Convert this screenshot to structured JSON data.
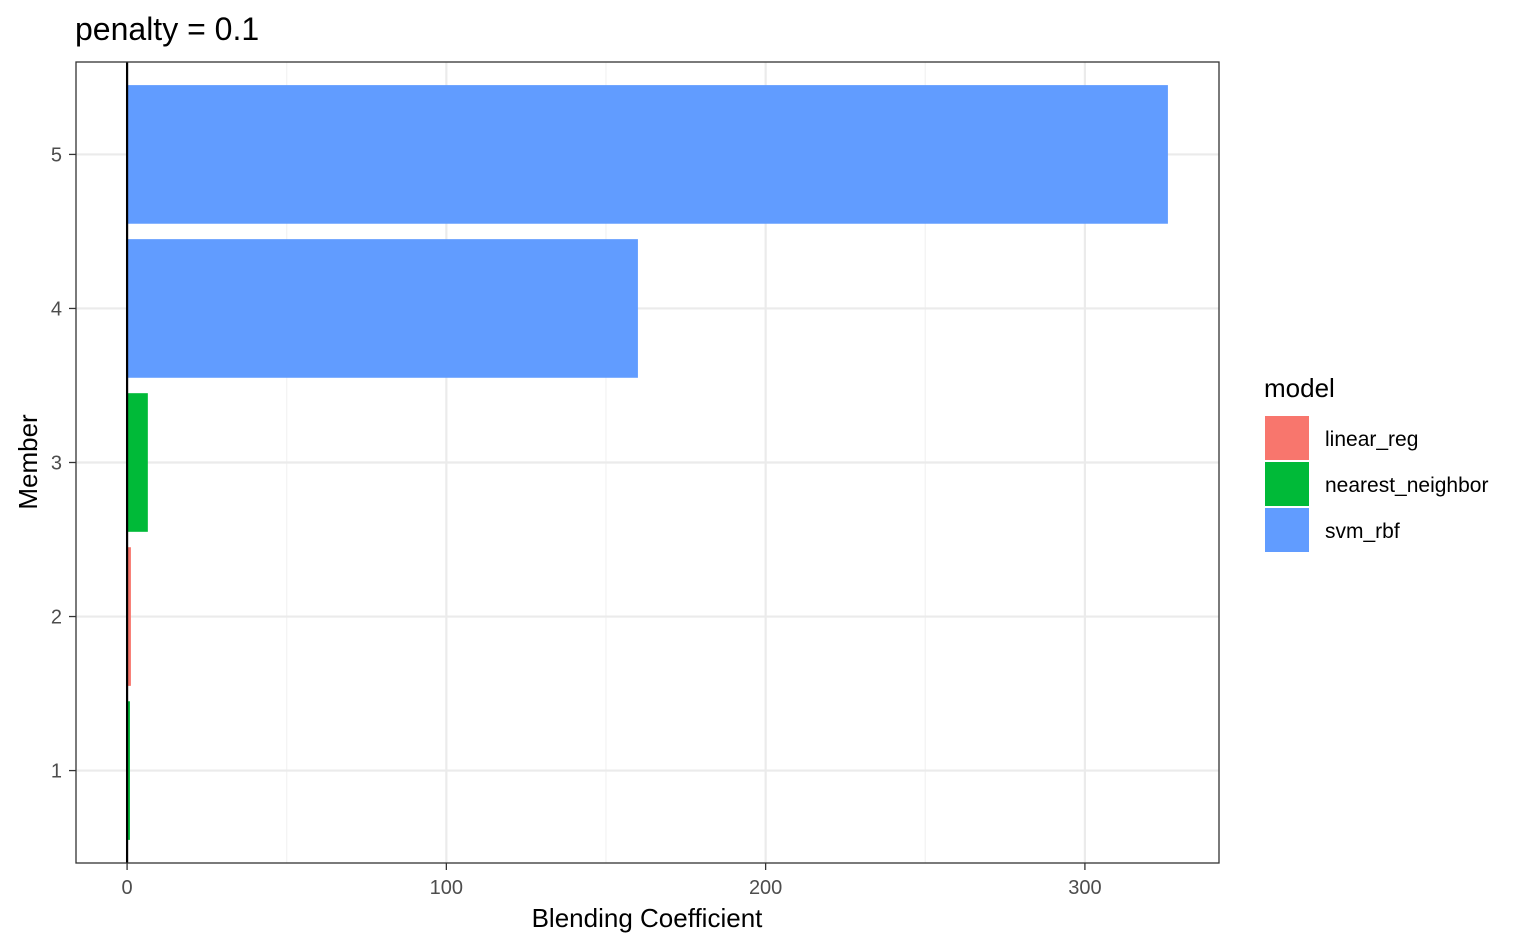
{
  "chart_data": {
    "type": "bar",
    "orientation": "horizontal",
    "title": "penalty = 0.1",
    "xlabel": "Blending Coefficient",
    "ylabel": "Member",
    "xlim": [
      -16,
      342
    ],
    "ylim": [
      0.4,
      5.6
    ],
    "x_ticks": [
      0,
      100,
      200,
      300
    ],
    "x_minor_ticks": [
      50,
      150,
      250
    ],
    "y_ticks": [
      1,
      2,
      3,
      4,
      5
    ],
    "grid": true,
    "vline": 0,
    "legend": {
      "title": "model",
      "position": "right",
      "entries": [
        {
          "label": "linear_reg",
          "color": "#F8766D"
        },
        {
          "label": "nearest_neighbor",
          "color": "#00BA38"
        },
        {
          "label": "svm_rbf",
          "color": "#619CFF"
        }
      ]
    },
    "bars": [
      {
        "member": 1,
        "value": 0.9,
        "model": "nearest_neighbor"
      },
      {
        "member": 2,
        "value": 1.2,
        "model": "linear_reg"
      },
      {
        "member": 3,
        "value": 6.5,
        "model": "nearest_neighbor"
      },
      {
        "member": 4,
        "value": 160,
        "model": "svm_rbf"
      },
      {
        "member": 5,
        "value": 326,
        "model": "svm_rbf"
      }
    ]
  }
}
